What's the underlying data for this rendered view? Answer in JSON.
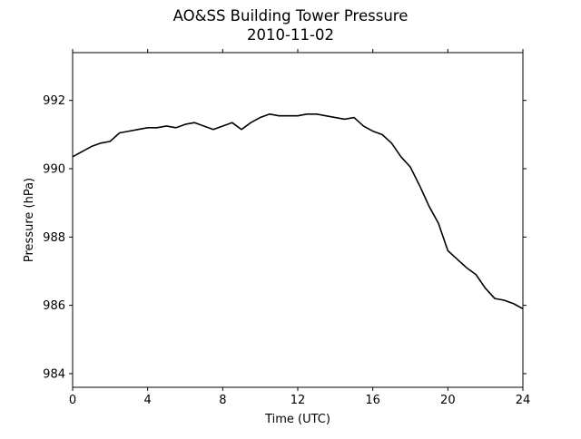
{
  "chart_data": {
    "type": "line",
    "title": "AO&SS Building Tower Pressure",
    "subtitle": "2010-11-02",
    "xlabel": "Time (UTC)",
    "ylabel": "Pressure (hPa)",
    "xlim": [
      0,
      24
    ],
    "ylim": [
      983.6,
      993.4
    ],
    "xticks": [
      0,
      4,
      8,
      12,
      16,
      20,
      24
    ],
    "yticks": [
      984,
      986,
      988,
      990,
      992
    ],
    "grid": false,
    "legend": "none",
    "line_color": "#000000",
    "series": [
      {
        "x": [
          0,
          0.5,
          1,
          1.5,
          2,
          2.5,
          3,
          3.5,
          4,
          4.5,
          5,
          5.5,
          6,
          6.5,
          7,
          7.5,
          8,
          8.5,
          9,
          9.5,
          10,
          10.5,
          11,
          11.5,
          12,
          12.5,
          13,
          13.5,
          14,
          14.5,
          15,
          15.5,
          16,
          16.5,
          17,
          17.5,
          18,
          18.5,
          19,
          19.5,
          20,
          20.5,
          21,
          21.5,
          22,
          22.5,
          23,
          23.5,
          24
        ],
        "values": [
          990.35,
          990.5,
          990.65,
          990.75,
          990.8,
          991.05,
          991.1,
          991.15,
          991.2,
          991.2,
          991.25,
          991.2,
          991.3,
          991.35,
          991.25,
          991.15,
          991.25,
          991.35,
          991.15,
          991.35,
          991.5,
          991.6,
          991.55,
          991.55,
          991.55,
          991.6,
          991.6,
          991.55,
          991.5,
          991.45,
          991.5,
          991.25,
          991.1,
          991.0,
          990.75,
          990.35,
          990.05,
          989.5,
          988.9,
          988.4,
          987.6,
          987.35,
          987.1,
          986.9,
          986.5,
          986.2,
          986.15,
          986.05,
          985.9
        ]
      }
    ]
  }
}
